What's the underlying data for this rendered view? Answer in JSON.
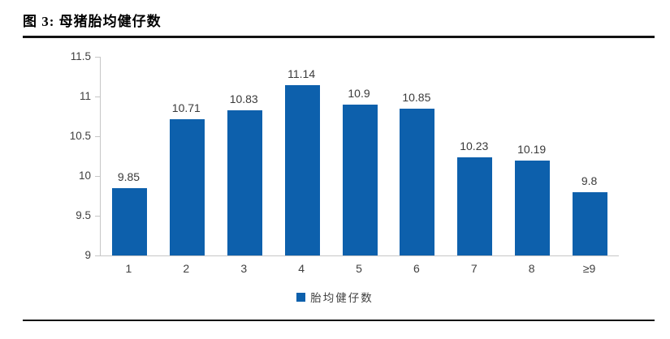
{
  "figure": {
    "title": "图 3: 母猪胎均健仔数"
  },
  "chart_data": {
    "type": "bar",
    "title": "图 3: 母猪胎均健仔数",
    "categories": [
      "1",
      "2",
      "3",
      "4",
      "5",
      "6",
      "7",
      "8",
      "≥9"
    ],
    "values": [
      9.85,
      10.71,
      10.83,
      11.14,
      10.9,
      10.85,
      10.23,
      10.19,
      9.8
    ],
    "data_labels": [
      "9.85",
      "10.71",
      "10.83",
      "11.14",
      "10.9",
      "10.85",
      "10.23",
      "10.19",
      "9.8"
    ],
    "legend": [
      "胎均健仔数"
    ],
    "legend_position": "bottom",
    "xlabel": "",
    "ylabel": "",
    "ylim": [
      9,
      11.5
    ],
    "yticks": [
      9,
      9.5,
      10,
      10.5,
      11,
      11.5
    ],
    "ytick_labels": [
      "9",
      "9.5",
      "10",
      "10.5",
      "11",
      "11.5"
    ],
    "grid": false,
    "colors": {
      "bar": "#0D60AC",
      "axis": "#C6C6C6",
      "label": "#3A3A3A",
      "tick_text": "#404040",
      "rule": "#121212"
    }
  }
}
